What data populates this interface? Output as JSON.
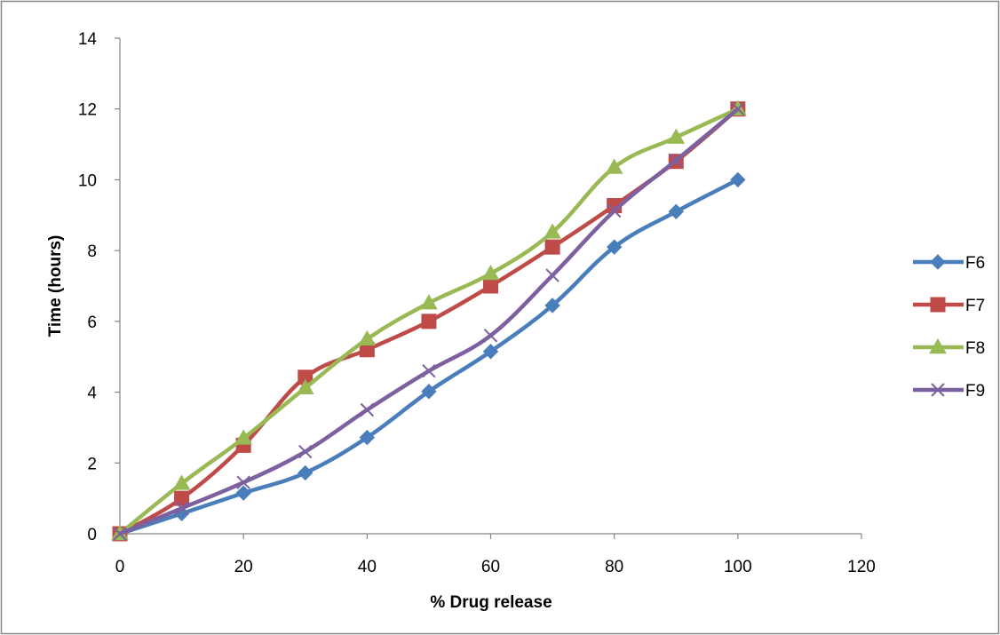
{
  "chart_data": {
    "type": "line",
    "title": "",
    "xlabel": "% Drug release",
    "ylabel": "Time (hours)",
    "xlim": [
      0,
      120
    ],
    "ylim": [
      0,
      14
    ],
    "xticks": [
      "0",
      "20",
      "40",
      "60",
      "80",
      "100",
      "120"
    ],
    "yticks": [
      "0",
      "2",
      "4",
      "6",
      "8",
      "10",
      "12",
      "14"
    ],
    "grid": false,
    "legend_position": "right",
    "x": [
      0,
      10,
      20,
      30,
      40,
      50,
      60,
      70,
      80,
      90,
      100
    ],
    "series": [
      {
        "name": "F6",
        "color": "#4A7EBB",
        "marker": "diamond",
        "values": [
          0,
          0.57,
          1.15,
          1.72,
          2.72,
          4.02,
          5.15,
          6.45,
          8.1,
          9.1,
          10.0
        ]
      },
      {
        "name": "F7",
        "color": "#BE4B48",
        "marker": "square",
        "values": [
          0,
          1.0,
          2.5,
          4.42,
          5.2,
          6.0,
          7.0,
          8.1,
          9.27,
          10.52,
          12.0
        ]
      },
      {
        "name": "F8",
        "color": "#98B954",
        "marker": "triangle",
        "values": [
          0,
          1.42,
          2.7,
          4.12,
          5.5,
          6.52,
          7.35,
          8.52,
          10.35,
          11.2,
          12.0
        ]
      },
      {
        "name": "F9",
        "color": "#7D60A0",
        "marker": "x",
        "values": [
          0,
          0.72,
          1.45,
          2.32,
          3.5,
          4.6,
          5.6,
          7.3,
          9.12,
          10.55,
          12.0
        ]
      }
    ]
  }
}
